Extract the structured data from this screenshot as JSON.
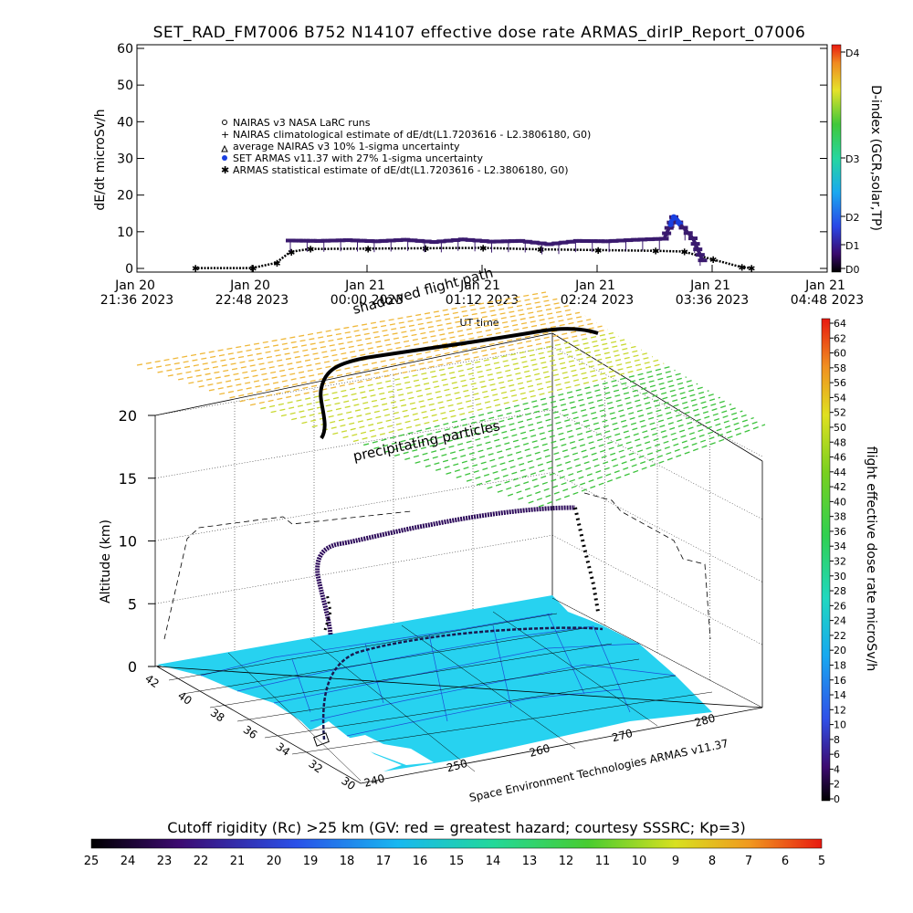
{
  "title": "SET_RAD_FM7006   B752 N14107 effective dose rate ARMAS_dirIP_Report_07006",
  "chart_data": [
    {
      "type": "scatter",
      "ylabel": "dE/dt microSv/h",
      "xlabel": "UT time",
      "ylim": [
        0,
        60
      ],
      "yticks": [
        "0",
        "10",
        "20",
        "30",
        "40",
        "50",
        "60"
      ],
      "xticks": [
        {
          "l1": "Jan 20",
          "l2": "21:36 2023"
        },
        {
          "l1": "Jan 20",
          "l2": "22:48 2023"
        },
        {
          "l1": "Jan 21",
          "l2": "00:00 2023"
        },
        {
          "l1": "Jan 21",
          "l2": "01:12 2023"
        },
        {
          "l1": "Jan 21",
          "l2": "02:24 2023"
        },
        {
          "l1": "Jan 21",
          "l2": "03:36 2023"
        },
        {
          "l1": "Jan 21",
          "l2": "04:48 2023"
        }
      ],
      "xrange_hours": [
        21.6,
        28.8
      ],
      "legend": [
        "NAIRAS v3 NASA LaRC runs",
        "NAIRAS climatological estimate of dE/dt(L1.7203616 - L2.3806180, G0)",
        "average NAIRAS v3 10% 1-sigma uncertainty",
        "SET ARMAS v11.37 with 27% 1-sigma uncertainty",
        "ARMAS statistical estimate of dE/dt(L1.7203616 - L2.3806180, G0)"
      ],
      "legend_placement": "upper-left",
      "series": [
        {
          "name": "SET ARMAS v11.37 with 27% 1-sigma uncertainty",
          "x_hours": [
            23.2,
            23.5,
            23.8,
            24.1,
            24.4,
            24.7,
            25.0,
            25.3,
            25.6,
            25.9,
            26.2,
            26.5,
            26.8,
            27.1,
            27.2,
            27.4,
            27.5
          ],
          "y": [
            7.6,
            7.5,
            7.7,
            7.4,
            7.8,
            7.2,
            7.9,
            7.3,
            7.5,
            6.6,
            7.5,
            7.4,
            7.8,
            8.1,
            14.0,
            8.2,
            2.2
          ]
        },
        {
          "name": "ARMAS statistical estimate of dE/dt(L1.7203616 - L2.3806180, G0)",
          "x_hours": [
            22.2,
            22.8,
            23.05,
            23.2,
            23.4,
            24.0,
            24.6,
            25.2,
            25.8,
            26.4,
            27.0,
            27.3,
            27.6,
            27.9,
            28.0
          ],
          "y": [
            0.1,
            0.1,
            1.5,
            4.5,
            5.3,
            5.4,
            5.5,
            5.6,
            5.2,
            5.0,
            4.8,
            4.6,
            2.5,
            0.4,
            0.1
          ]
        }
      ],
      "d_index_colorbar": {
        "label": "D-index (GCR,solar,TP)",
        "ticks": [
          "D0",
          "D1",
          "D2",
          "D3",
          "D4"
        ]
      }
    },
    {
      "type": "line",
      "ylabel": "Altitude (km)",
      "zticks": [
        "0",
        "5",
        "10",
        "15",
        "20"
      ],
      "lat_ticks": [
        "42",
        "40",
        "38",
        "36",
        "34",
        "32",
        "30"
      ],
      "lon_ticks": [
        "240",
        "250",
        "260",
        "270",
        "280"
      ],
      "annotations": [
        "shadowed flight path",
        "precipitating particles"
      ],
      "credit": "Space Environment Technologies ARMAS v11.37",
      "series": [
        {
          "name": "flight altitude",
          "x_hours": [
            23.0,
            23.1,
            23.2,
            23.3,
            23.5,
            24.0,
            24.5,
            25.0,
            25.5,
            26.0,
            26.5,
            27.0,
            27.4,
            27.6,
            27.8
          ],
          "altitude_km": [
            0.0,
            3.5,
            7.5,
            9.5,
            10.0,
            10.4,
            10.9,
            11.3,
            11.6,
            11.8,
            11.9,
            11.9,
            11.9,
            7.0,
            1.0
          ]
        }
      ],
      "rate_colorbar": {
        "label": "flight effective dose rate microSv/h",
        "range": [
          0,
          64
        ],
        "ticks": [
          "0",
          "2",
          "4",
          "6",
          "8",
          "10",
          "12",
          "14",
          "16",
          "18",
          "20",
          "22",
          "24",
          "26",
          "28",
          "30",
          "32",
          "34",
          "36",
          "38",
          "40",
          "42",
          "44",
          "46",
          "48",
          "50",
          "52",
          "54",
          "56",
          "58",
          "60",
          "62",
          "64"
        ]
      },
      "cutoff_colorbar": {
        "label": "Cutoff rigidity (Rc) >25 km (GV: red = greatest hazard; courtesy SSSRC; Kp=3)",
        "ticks": [
          "25",
          "24",
          "23",
          "22",
          "21",
          "20",
          "19",
          "18",
          "17",
          "16",
          "15",
          "14",
          "13",
          "12",
          "11",
          "10",
          "9",
          "8",
          "7",
          "6",
          "5"
        ]
      }
    }
  ],
  "colors": {
    "map": "#27d2f0",
    "coast": "#1d4fd6",
    "armas": "#1a40e0",
    "track_high": "#000000",
    "track_mid": "#2c0a5a"
  }
}
